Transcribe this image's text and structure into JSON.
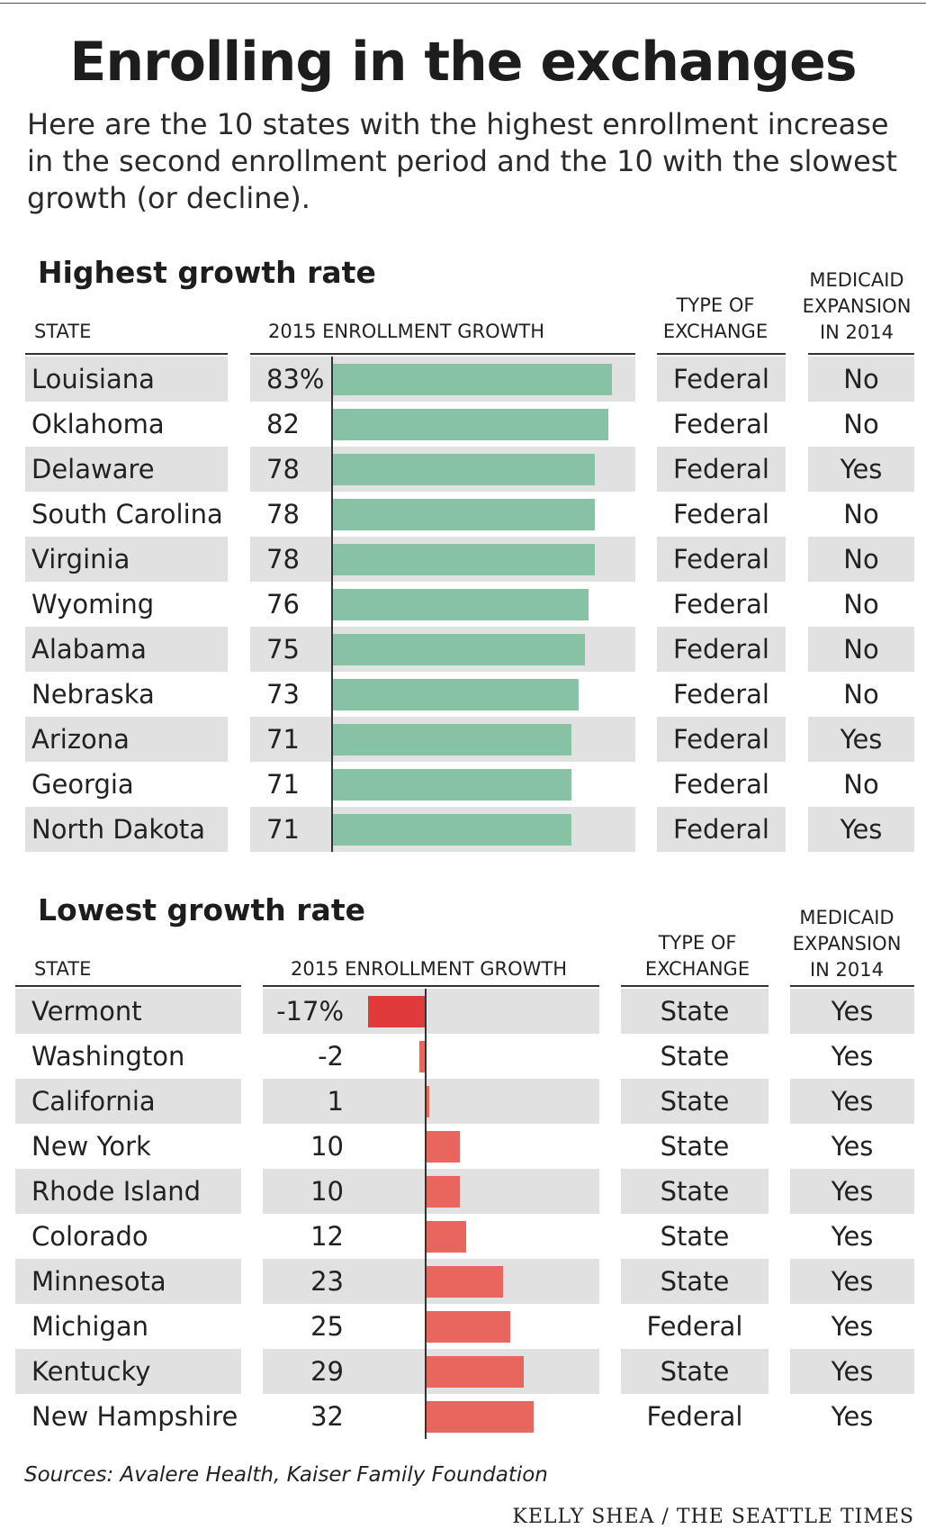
{
  "title": "Enrolling in the exchanges",
  "intro": "Here are the 10 states with the highest enrollment increase in the second enrollment period and the 10 with the slowest growth (or decline).",
  "headers": {
    "state": "STATE",
    "growth": "2015 ENROLLMENT GROWTH",
    "type_line1": "TYPE OF",
    "type_line2": "EXCHANGE",
    "medicaid_line1": "MEDICAID",
    "medicaid_line2": "EXPANSION",
    "medicaid_line3": "IN 2014"
  },
  "colors": {
    "highest_bar": "#86c2a3",
    "lowest_bar": "#e9665e",
    "vermont_bar": "#e03a3a",
    "band": "#e1e1e1"
  },
  "chart_data": [
    {
      "type": "bar",
      "title": "Highest growth rate",
      "xlabel": "2015 ENROLLMENT GROWTH",
      "unit": "%",
      "xlim": [
        0,
        83
      ],
      "categories": [
        "Louisiana",
        "Oklahoma",
        "Delaware",
        "South Carolina",
        "Virginia",
        "Wyoming",
        "Alabama",
        "Nebraska",
        "Arizona",
        "Georgia",
        "North Dakota"
      ],
      "values": [
        83,
        82,
        78,
        78,
        78,
        76,
        75,
        73,
        71,
        71,
        71
      ],
      "labels": [
        "83%",
        "82",
        "78",
        "78",
        "78",
        "76",
        "75",
        "73",
        "71",
        "71",
        "71"
      ],
      "exchange_type": [
        "Federal",
        "Federal",
        "Federal",
        "Federal",
        "Federal",
        "Federal",
        "Federal",
        "Federal",
        "Federal",
        "Federal",
        "Federal"
      ],
      "medicaid_expansion": [
        "No",
        "No",
        "Yes",
        "No",
        "No",
        "No",
        "No",
        "No",
        "Yes",
        "No",
        "Yes"
      ]
    },
    {
      "type": "bar",
      "title": "Lowest growth rate",
      "xlabel": "2015 ENROLLMENT GROWTH",
      "unit": "%",
      "xlim": [
        -17,
        32
      ],
      "categories": [
        "Vermont",
        "Washington",
        "California",
        "New York",
        "Rhode Island",
        "Colorado",
        "Minnesota",
        "Michigan",
        "Kentucky",
        "New Hampshire"
      ],
      "values": [
        -17,
        -2,
        1,
        10,
        10,
        12,
        23,
        25,
        29,
        32
      ],
      "labels": [
        "-17%",
        "-2",
        "1",
        "10",
        "10",
        "12",
        "23",
        "25",
        "29",
        "32"
      ],
      "exchange_type": [
        "State",
        "State",
        "State",
        "State",
        "State",
        "State",
        "State",
        "Federal",
        "State",
        "Federal"
      ],
      "medicaid_expansion": [
        "Yes",
        "Yes",
        "Yes",
        "Yes",
        "Yes",
        "Yes",
        "Yes",
        "Yes",
        "Yes",
        "Yes"
      ]
    }
  ],
  "sources": "Sources: Avalere Health, Kaiser Family Foundation",
  "credit": "KELLY SHEA / THE SEATTLE TIMES"
}
